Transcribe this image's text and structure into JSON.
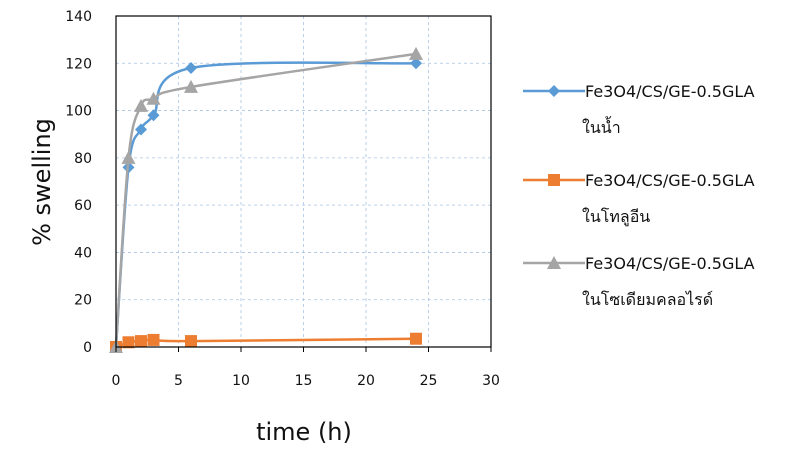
{
  "chart_data": {
    "type": "scatter",
    "xlabel": "time (h)",
    "ylabel": "% swelling",
    "xlim": [
      0,
      30
    ],
    "ylim": [
      0,
      140
    ],
    "x_ticks": [
      0,
      5,
      10,
      15,
      20,
      25,
      30
    ],
    "y_ticks": [
      0,
      20,
      40,
      60,
      80,
      100,
      120,
      140
    ],
    "grid": "dashed",
    "legend_position": "right",
    "series": [
      {
        "name_line1": "Fe3O4/CS/GE-0.5GLA",
        "name_line2": "ในน้ำ",
        "color": "#5B9BD5",
        "marker": "diamond",
        "x": [
          0,
          1,
          2,
          3,
          6,
          24
        ],
        "y": [
          0,
          76,
          92,
          98,
          118,
          120
        ]
      },
      {
        "name_line1": "Fe3O4/CS/GE-0.5GLA",
        "name_line2": "ในโทลูอีน",
        "color": "#ED7D31",
        "marker": "square",
        "x": [
          0,
          1,
          2,
          3,
          6,
          24
        ],
        "y": [
          0,
          2,
          2.5,
          3,
          2.5,
          3.5
        ]
      },
      {
        "name_line1": "Fe3O4/CS/GE-0.5GLA",
        "name_line2": "ในโซเดียมคลอไรด์",
        "color": "#A5A5A5",
        "marker": "triangle",
        "x": [
          0,
          1,
          2,
          3,
          6,
          24
        ],
        "y": [
          0,
          80,
          102,
          105,
          110,
          124
        ]
      }
    ]
  }
}
